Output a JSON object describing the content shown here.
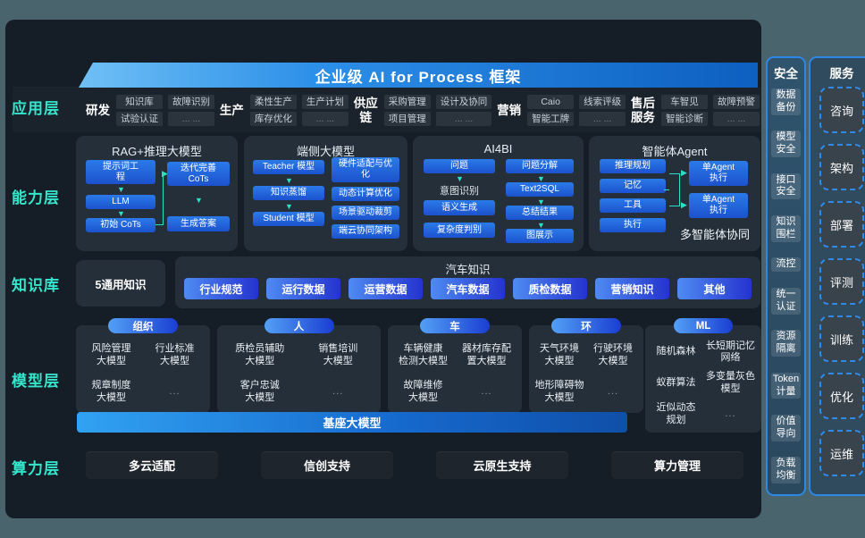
{
  "banner": {
    "title": "企业级 AI for Process 框架"
  },
  "side_labels": {
    "app": "应用层",
    "capability": "能力层",
    "knowledge": "知识库",
    "model": "模型层",
    "compute": "算力层"
  },
  "app_layer": {
    "groups": [
      {
        "name": "研发",
        "cells": [
          "知识库",
          "故障识别",
          "试验认证",
          "... ..."
        ]
      },
      {
        "name": "生产",
        "cells": [
          "柔性生产",
          "生产计划",
          "库存优化",
          "... ..."
        ]
      },
      {
        "name": "供应\n链",
        "cells": [
          "采购管理",
          "设计及协同",
          "项目管理",
          "... ..."
        ]
      },
      {
        "name": "营销",
        "cells": [
          "Caio",
          "线索评级",
          "智能工牌",
          "... ..."
        ]
      },
      {
        "name": "售后\n服务",
        "cells": [
          "车智见",
          "故障预警",
          "智能诊断",
          "... ..."
        ]
      }
    ]
  },
  "capability": {
    "rag": {
      "title": "RAG+推理大模型",
      "prompt": "提示词工\n程",
      "llm": "LLM",
      "init_cots": "初始 CoTs",
      "iter_cots": "迭代完善\nCoTs",
      "answer": "生成答案"
    },
    "edge": {
      "title": "端侧大模型",
      "teacher": "Teacher 模型",
      "distill": "知识蒸馏",
      "student": "Student 模型",
      "right": [
        "硬件适配与优\n化",
        "动态计算优化",
        "场景驱动裁剪",
        "端云协同架构"
      ]
    },
    "ai4bi": {
      "title": "AI4BI",
      "q": "问题",
      "intent": "意图识别",
      "semantic": "语义生成",
      "complexity": "复杂度判别",
      "decompose": "问题分解",
      "text2sql": "Text2SQL",
      "summary": "总结结果",
      "display": "图展示"
    },
    "agent": {
      "title": "智能体Agent",
      "left": [
        "推理规划",
        "记忆",
        "工具",
        "执行"
      ],
      "exec1": "单Agent\n执行",
      "exec2": "单Agent\n执行",
      "footer": "多智能体协同"
    }
  },
  "knowledge": {
    "general": "5通用知识",
    "title": "汽车知识",
    "pills": [
      "行业规范",
      "运行数据",
      "运营数据",
      "汽车数据",
      "质检数据",
      "营销知识",
      "其他"
    ]
  },
  "model_layer": {
    "groups": [
      {
        "pill": "组织",
        "cells": [
          "风险管理\n大模型",
          "行业标准\n大模型",
          "规章制度\n大模型",
          "..."
        ]
      },
      {
        "pill": "人",
        "cells": [
          "质检员辅助\n大模型",
          "销售培训\n大模型",
          "客户忠诚\n大模型",
          "..."
        ]
      },
      {
        "pill": "车",
        "cells": [
          "车辆健康\n检测大模型",
          "器材库存配\n置大模型",
          "故障维修\n大模型",
          "..."
        ]
      },
      {
        "pill": "环",
        "cells": [
          "天气环境\n大模型",
          "行驶环境\n大模型",
          "地形障碍物\n大模型",
          "..."
        ]
      },
      {
        "pill": "ML",
        "cells": [
          "随机森林",
          "长短期记忆\n网络",
          "蚁群算法",
          "多变量灰色\n模型",
          "近似动态\n规划",
          "..."
        ]
      }
    ],
    "foundation": "基座大模型"
  },
  "compute_layer": {
    "items": [
      "多云适配",
      "信创支持",
      "云原生支持",
      "算力管理"
    ]
  },
  "security": {
    "title": "安全",
    "items": [
      "数据\n备份",
      "模型\n安全",
      "接口\n安全",
      "知识\n围栏",
      "流控",
      "统一\n认证",
      "资源\n隔离",
      "Token\n计量",
      "价值\n导向",
      "负载\n均衡"
    ]
  },
  "service": {
    "title": "服务",
    "items": [
      "咨询",
      "架构",
      "部署",
      "评测",
      "训练",
      "优化",
      "运维"
    ]
  },
  "colors": {
    "accent_teal": "#2fe3c8",
    "chip_blue": "#2470e8",
    "banner_blue": "#1478dc",
    "panel_bg": "#151d27",
    "outer_bg": "#4a646e"
  }
}
